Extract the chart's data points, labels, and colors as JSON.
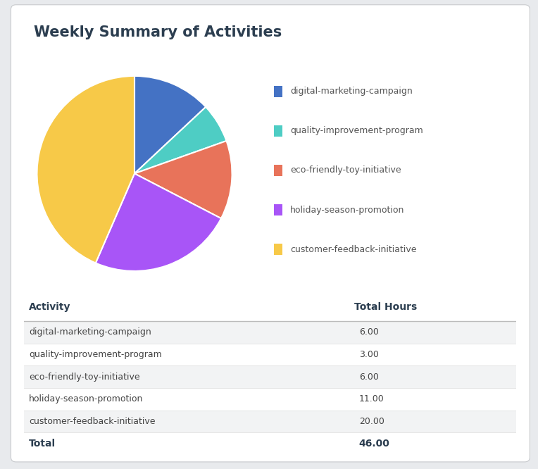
{
  "title": "Weekly Summary of Activities",
  "activities": [
    "digital-marketing-campaign",
    "quality-improvement-program",
    "eco-friendly-toy-initiative",
    "holiday-season-promotion",
    "customer-feedback-initiative"
  ],
  "hours": [
    6.0,
    3.0,
    6.0,
    11.0,
    20.0
  ],
  "total": 46.0,
  "hours_str": [
    "6.00",
    "3.00",
    "6.00",
    "11.00",
    "20.00"
  ],
  "colors": [
    "#4472c4",
    "#4ecdc4",
    "#e8735a",
    "#a855f7",
    "#f7c948"
  ],
  "background_color": "#e8eaed",
  "card_color": "#ffffff",
  "title_color": "#2c3e50",
  "table_header_color": "#2c3e50",
  "table_row_alt_color": "#f2f3f4",
  "table_row_color": "#ffffff",
  "header_line_color": "#bbbbbb",
  "row_line_color": "#e0e0e0",
  "title_fontsize": 15,
  "legend_fontsize": 9,
  "table_fontsize": 9,
  "table_header_fontsize": 10
}
